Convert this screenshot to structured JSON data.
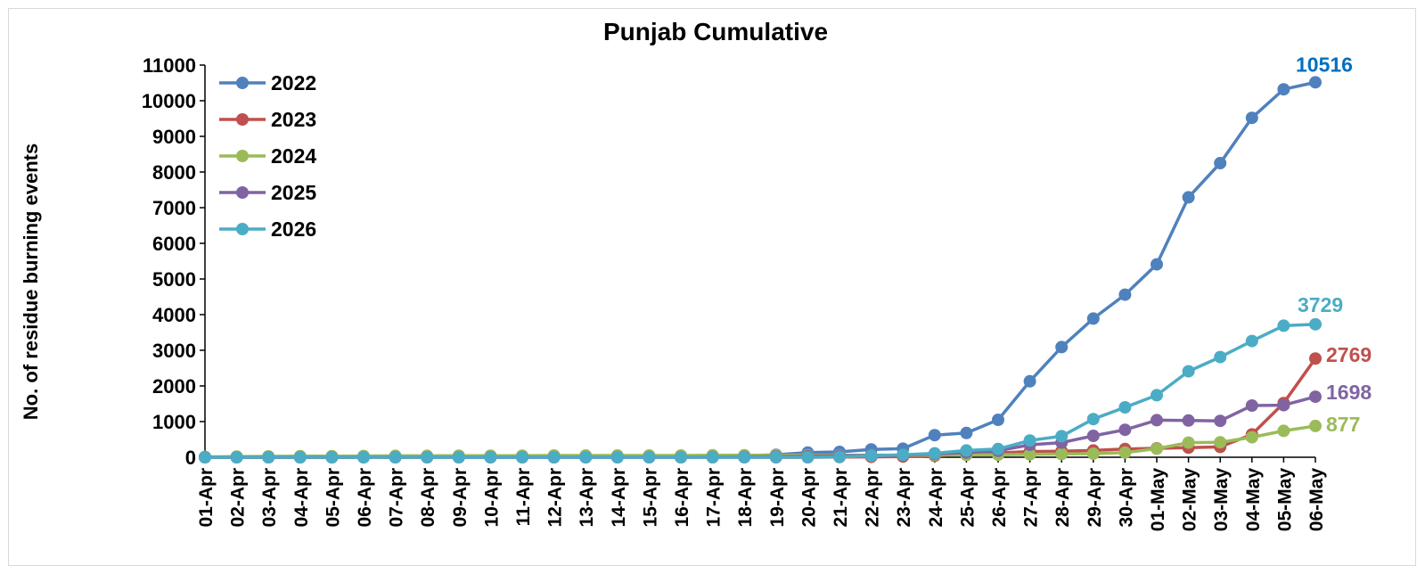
{
  "chart_data": {
    "type": "line",
    "title": "Punjab Cumulative",
    "xlabel": "",
    "ylabel": "No. of residue burning events",
    "ylim": [
      0,
      11000
    ],
    "yticks": [
      0,
      1000,
      2000,
      3000,
      4000,
      5000,
      6000,
      7000,
      8000,
      9000,
      10000,
      11000
    ],
    "grid": false,
    "legend_position": "top-left",
    "categories": [
      "01-Apr",
      "02-Apr",
      "03-Apr",
      "04-Apr",
      "05-Apr",
      "06-Apr",
      "07-Apr",
      "08-Apr",
      "09-Apr",
      "10-Apr",
      "11-Apr",
      "12-Apr",
      "13-Apr",
      "14-Apr",
      "15-Apr",
      "16-Apr",
      "17-Apr",
      "18-Apr",
      "19-Apr",
      "20-Apr",
      "21-Apr",
      "22-Apr",
      "23-Apr",
      "24-Apr",
      "25-Apr",
      "26-Apr",
      "27-Apr",
      "28-Apr",
      "29-Apr",
      "30-Apr",
      "01-May",
      "02-May",
      "03-May",
      "04-May",
      "05-May",
      "06-May"
    ],
    "series": [
      {
        "name": "2022",
        "color": "#4f81bd",
        "end_label": "10516",
        "end_label_color": "#0070c0",
        "values": [
          0,
          0,
          0,
          0,
          0,
          5,
          10,
          10,
          15,
          15,
          20,
          20,
          25,
          25,
          30,
          35,
          40,
          45,
          70,
          130,
          150,
          220,
          240,
          620,
          680,
          1050,
          2130,
          3090,
          3890,
          4560,
          5410,
          7290,
          8250,
          9520,
          10320,
          10516
        ]
      },
      {
        "name": "2023",
        "color": "#c0504d",
        "end_label": "2769",
        "end_label_color": "#c0504d",
        "values": [
          0,
          0,
          0,
          0,
          0,
          0,
          0,
          0,
          0,
          0,
          0,
          0,
          0,
          0,
          0,
          0,
          0,
          0,
          0,
          0,
          5,
          10,
          20,
          40,
          80,
          120,
          160,
          170,
          190,
          230,
          250,
          270,
          290,
          640,
          1520,
          2769
        ]
      },
      {
        "name": "2024",
        "color": "#9bbb59",
        "end_label": "877",
        "end_label_color": "#9bbb59",
        "values": [
          10,
          20,
          25,
          30,
          30,
          35,
          40,
          40,
          45,
          45,
          45,
          50,
          50,
          50,
          50,
          50,
          55,
          55,
          55,
          55,
          55,
          55,
          60,
          60,
          65,
          70,
          80,
          90,
          100,
          130,
          240,
          410,
          420,
          560,
          740,
          877
        ]
      },
      {
        "name": "2025",
        "color": "#8064a2",
        "end_label": "1698",
        "end_label_color": "#8064a2",
        "values": [
          0,
          0,
          0,
          0,
          0,
          0,
          0,
          0,
          0,
          0,
          0,
          0,
          0,
          0,
          0,
          0,
          5,
          10,
          20,
          30,
          40,
          50,
          60,
          90,
          130,
          180,
          350,
          410,
          600,
          770,
          1040,
          1030,
          1020,
          1450,
          1460,
          1698
        ]
      },
      {
        "name": "2026",
        "color": "#4bacc6",
        "end_label": "3729",
        "end_label_color": "#4bacc6",
        "values": [
          0,
          0,
          0,
          0,
          0,
          0,
          0,
          0,
          0,
          0,
          0,
          0,
          0,
          0,
          0,
          0,
          0,
          0,
          0,
          0,
          10,
          40,
          70,
          110,
          190,
          230,
          470,
          590,
          1070,
          1400,
          1740,
          2410,
          2810,
          3260,
          3690,
          3729
        ]
      }
    ]
  }
}
